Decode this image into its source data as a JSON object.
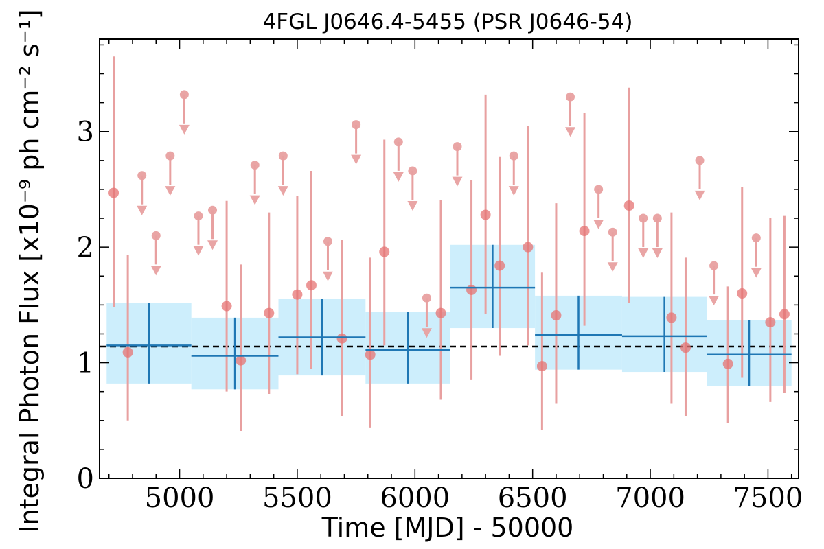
{
  "chart_data": {
    "type": "scatter",
    "title": "4FGL J0646.4-5455 (PSR J0646-54)",
    "xlabel": "Time [MJD] - 50000",
    "ylabel": "Integral Photon Flux [x10⁻⁹ ph cm⁻² s⁻¹]",
    "xlim": [
      4660,
      7630
    ],
    "ylim": [
      0,
      3.8
    ],
    "xticks": [
      5000,
      5500,
      6000,
      6500,
      7000,
      7500
    ],
    "yticks": [
      0,
      1,
      2,
      3
    ],
    "grid": false,
    "mean_flux": 1.14,
    "colors": {
      "detections": "#e57373",
      "errorbars": "#e8a0a0",
      "binned": "#1f77b4",
      "band": "#cdeefc",
      "mean_line": "#000000"
    },
    "series": [
      {
        "kind": "detection",
        "points": [
          {
            "x": 4720,
            "y": 2.47,
            "lo": 1.48,
            "hi": 3.65
          },
          {
            "x": 4780,
            "y": 1.09,
            "lo": 0.5,
            "hi": 1.93
          },
          {
            "x": 5200,
            "y": 1.49,
            "lo": 0.75,
            "hi": 2.4
          },
          {
            "x": 5260,
            "y": 1.02,
            "lo": 0.41,
            "hi": 1.85
          },
          {
            "x": 5380,
            "y": 1.43,
            "lo": 0.73,
            "hi": 2.3
          },
          {
            "x": 5500,
            "y": 1.59,
            "lo": 0.9,
            "hi": 2.44
          },
          {
            "x": 5560,
            "y": 1.67,
            "lo": 0.95,
            "hi": 2.66
          },
          {
            "x": 5690,
            "y": 1.21,
            "lo": 0.54,
            "hi": 2.06
          },
          {
            "x": 5810,
            "y": 1.07,
            "lo": 0.44,
            "hi": 1.91
          },
          {
            "x": 5870,
            "y": 1.96,
            "lo": 1.15,
            "hi": 2.93
          },
          {
            "x": 6110,
            "y": 1.43,
            "lo": 0.68,
            "hi": 2.41
          },
          {
            "x": 6240,
            "y": 1.63,
            "lo": 0.85,
            "hi": 2.58
          },
          {
            "x": 6300,
            "y": 2.28,
            "lo": 1.42,
            "hi": 3.32
          },
          {
            "x": 6360,
            "y": 1.84,
            "lo": 1.06,
            "hi": 2.78
          },
          {
            "x": 6480,
            "y": 2.0,
            "lo": 1.15,
            "hi": 3.05
          },
          {
            "x": 6540,
            "y": 0.97,
            "lo": 0.42,
            "hi": 1.78
          },
          {
            "x": 6600,
            "y": 1.41,
            "lo": 0.65,
            "hi": 2.38
          },
          {
            "x": 6720,
            "y": 2.14,
            "lo": 1.32,
            "hi": 3.16
          },
          {
            "x": 6910,
            "y": 2.36,
            "lo": 1.52,
            "hi": 3.38
          },
          {
            "x": 7090,
            "y": 1.39,
            "lo": 0.65,
            "hi": 2.3
          },
          {
            "x": 7150,
            "y": 1.13,
            "lo": 0.54,
            "hi": 1.91
          },
          {
            "x": 7330,
            "y": 0.99,
            "lo": 0.48,
            "hi": 1.66
          },
          {
            "x": 7390,
            "y": 1.6,
            "lo": 0.87,
            "hi": 2.52
          },
          {
            "x": 7510,
            "y": 1.35,
            "lo": 0.66,
            "hi": 2.25
          },
          {
            "x": 7570,
            "y": 1.42,
            "lo": 0.74,
            "hi": 2.27
          }
        ]
      },
      {
        "kind": "upper_limit",
        "points": [
          {
            "x": 4840,
            "y": 2.62
          },
          {
            "x": 4900,
            "y": 2.1
          },
          {
            "x": 4960,
            "y": 2.79
          },
          {
            "x": 5020,
            "y": 3.32
          },
          {
            "x": 5080,
            "y": 2.27
          },
          {
            "x": 5140,
            "y": 2.32
          },
          {
            "x": 5320,
            "y": 2.71
          },
          {
            "x": 5440,
            "y": 2.79
          },
          {
            "x": 5630,
            "y": 2.05
          },
          {
            "x": 5750,
            "y": 3.06
          },
          {
            "x": 5930,
            "y": 2.91
          },
          {
            "x": 5990,
            "y": 2.66
          },
          {
            "x": 6050,
            "y": 1.56
          },
          {
            "x": 6180,
            "y": 2.87
          },
          {
            "x": 6420,
            "y": 2.79
          },
          {
            "x": 6660,
            "y": 3.3
          },
          {
            "x": 6780,
            "y": 2.5
          },
          {
            "x": 6840,
            "y": 2.13
          },
          {
            "x": 6970,
            "y": 2.25
          },
          {
            "x": 7030,
            "y": 2.25
          },
          {
            "x": 7210,
            "y": 2.75
          },
          {
            "x": 7270,
            "y": 1.84
          },
          {
            "x": 7450,
            "y": 2.08
          }
        ]
      },
      {
        "kind": "binned",
        "bins": [
          {
            "x0": 4690,
            "x1": 5050,
            "y": 1.15,
            "lo": 0.82,
            "hi": 1.52
          },
          {
            "x0": 5050,
            "x1": 5420,
            "y": 1.06,
            "lo": 0.77,
            "hi": 1.39
          },
          {
            "x0": 5420,
            "x1": 5790,
            "y": 1.22,
            "lo": 0.89,
            "hi": 1.55
          },
          {
            "x0": 5790,
            "x1": 6150,
            "y": 1.11,
            "lo": 0.82,
            "hi": 1.44
          },
          {
            "x0": 6150,
            "x1": 6510,
            "y": 1.65,
            "lo": 1.3,
            "hi": 2.02
          },
          {
            "x0": 6510,
            "x1": 6880,
            "y": 1.24,
            "lo": 0.94,
            "hi": 1.58
          },
          {
            "x0": 6880,
            "x1": 7240,
            "y": 1.23,
            "lo": 0.92,
            "hi": 1.57
          },
          {
            "x0": 7240,
            "x1": 7600,
            "y": 1.07,
            "lo": 0.8,
            "hi": 1.37
          }
        ]
      }
    ]
  }
}
